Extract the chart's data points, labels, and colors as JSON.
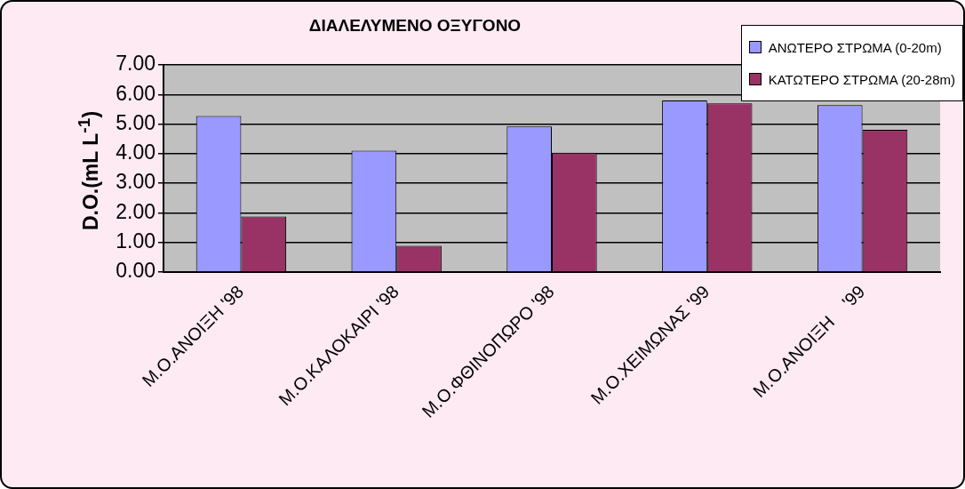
{
  "chart_data": {
    "type": "bar",
    "title": "ΔΙΑΛΕΛΥΜΕΝΟ ΟΞΥΓΟΝΟ",
    "ylabel": "D.O.(mL L$^{-1}$)",
    "categories": [
      "Μ.Ο.ΑΝΟΙΞΗ '98",
      "Μ.Ο.ΚΑΛΟΚΑΙΡΙ '98",
      "Μ.Ο.ΦΘΙΝΟΠΩΡΟ '98",
      "Μ.Ο.ΧΕΙΜΩΝΑΣ '99",
      "Μ.Ο.ΑΝΟΙΞΗ    '99"
    ],
    "series": [
      {
        "name": "ΑΝΩΤΕΡΟ ΣΤΡΩΜΑ (0-20m)",
        "color": "#9999ff",
        "values": [
          5.27,
          4.1,
          4.92,
          5.8,
          5.64
        ]
      },
      {
        "name": "ΚΑΤΩΤΕΡΟ ΣΤΡΩΜΑ (20-28m)",
        "color": "#993366",
        "values": [
          1.88,
          0.89,
          4.03,
          5.7,
          4.81
        ]
      }
    ],
    "ylim": [
      0,
      7
    ],
    "yticks": [
      {
        "value": 0,
        "label": "0.00"
      },
      {
        "value": 1,
        "label": "1.00"
      },
      {
        "value": 2,
        "label": "2.00"
      },
      {
        "value": 3,
        "label": "3.00"
      },
      {
        "value": 4,
        "label": "4.00"
      },
      {
        "value": 5,
        "label": "5.00"
      },
      {
        "value": 6,
        "label": "6.00"
      },
      {
        "value": 7,
        "label": "7.00"
      }
    ],
    "grid": "y",
    "legend": "top right"
  }
}
